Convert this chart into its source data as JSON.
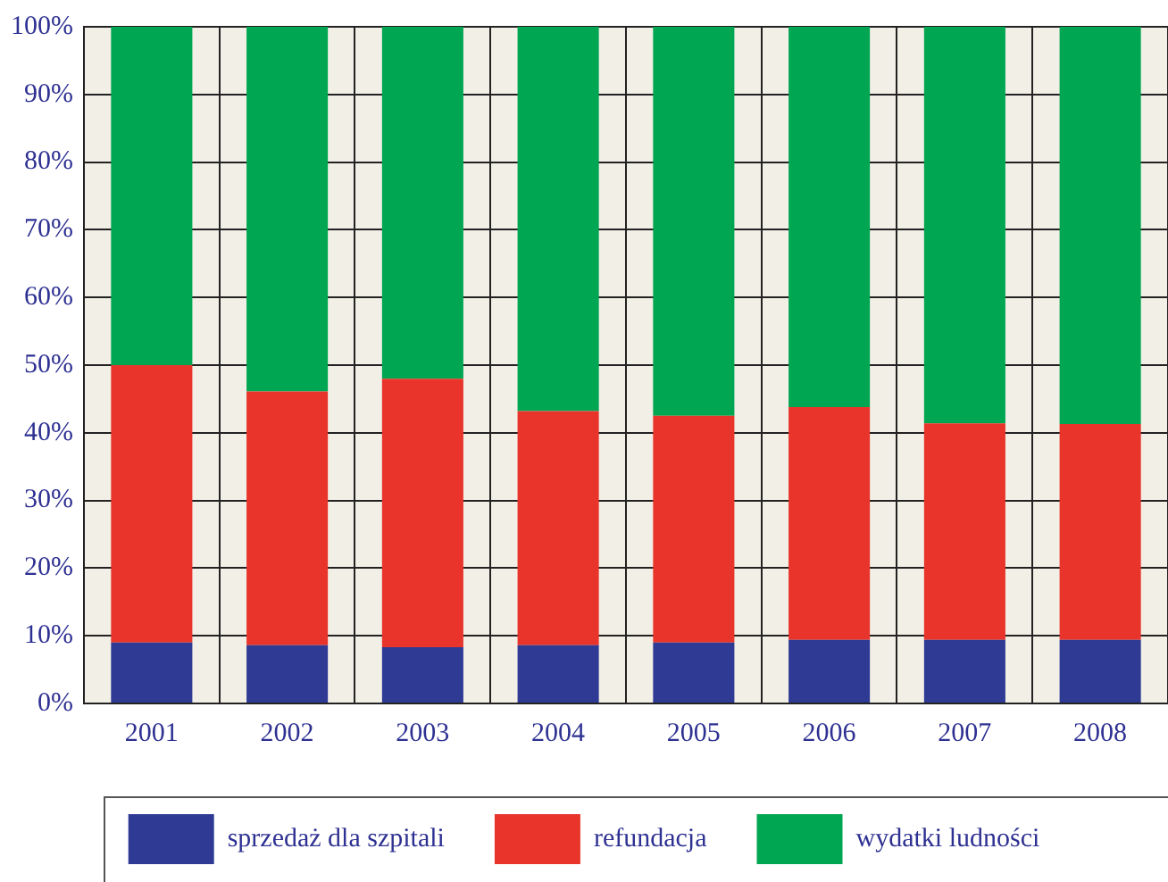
{
  "chart_data": {
    "type": "bar",
    "stacked": true,
    "categories": [
      "2001",
      "2002",
      "2003",
      "2004",
      "2005",
      "2006",
      "2007",
      "2008"
    ],
    "series": [
      {
        "name": "sprzedaż dla szpitali",
        "color": "#2e3a94",
        "values": [
          9.0,
          8.6,
          8.3,
          8.6,
          9.0,
          9.4,
          9.4,
          9.4
        ]
      },
      {
        "name": "refundacja",
        "color": "#e8342a",
        "values": [
          41.0,
          37.5,
          39.7,
          34.6,
          33.5,
          34.4,
          32.0,
          31.9
        ]
      },
      {
        "name": "wydatki ludności",
        "color": "#00a651",
        "values": [
          50.0,
          53.9,
          52.0,
          56.8,
          57.5,
          56.2,
          58.6,
          58.7
        ]
      }
    ],
    "ylim": [
      0,
      100
    ],
    "yticks": [
      {
        "value": 0,
        "label": "0%"
      },
      {
        "value": 10,
        "label": "10%"
      },
      {
        "value": 20,
        "label": "20%"
      },
      {
        "value": 30,
        "label": "30%"
      },
      {
        "value": 40,
        "label": "40%"
      },
      {
        "value": 50,
        "label": "50%"
      },
      {
        "value": 60,
        "label": "60%"
      },
      {
        "value": 70,
        "label": "70%"
      },
      {
        "value": 80,
        "label": "80%"
      },
      {
        "value": 90,
        "label": "90%"
      },
      {
        "value": 100,
        "label": "100%"
      }
    ],
    "grid": true,
    "legend": "bottom"
  }
}
